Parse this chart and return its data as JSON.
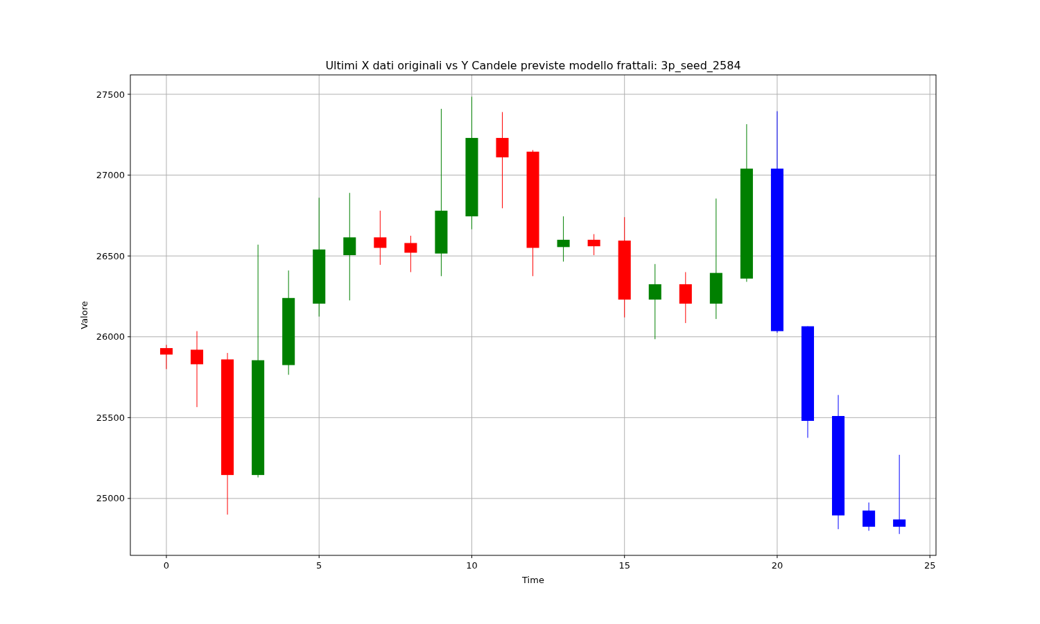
{
  "chart_data": {
    "type": "candlestick",
    "title": "Ultimi X dati originali vs Y Candele previste modello frattali: 3p_seed_2584",
    "xlabel": "Time",
    "ylabel": "Valore",
    "xlim": [
      -1.18,
      25.2
    ],
    "xticks": [
      0,
      5,
      10,
      15,
      20,
      25
    ],
    "ylim": [
      24648,
      27620
    ],
    "yticks": [
      25000,
      25500,
      26000,
      26500,
      27000,
      27500
    ],
    "grid": true,
    "series": [
      {
        "x": [
          0,
          1,
          2,
          3,
          4,
          5,
          6,
          7,
          8,
          9,
          10,
          11,
          12,
          13,
          14,
          15,
          16,
          17,
          18,
          19
        ],
        "ohlc": [
          [
            25930,
            25950,
            25800,
            25890
          ],
          [
            25920,
            26035,
            25565,
            25830
          ],
          [
            25860,
            25900,
            24900,
            25145
          ],
          [
            25145,
            26570,
            25130,
            25855
          ],
          [
            25825,
            26410,
            25765,
            26240
          ],
          [
            26205,
            26860,
            26125,
            26540
          ],
          [
            26505,
            26890,
            26225,
            26615
          ],
          [
            26615,
            26780,
            26445,
            26550
          ],
          [
            26580,
            26625,
            26400,
            26520
          ],
          [
            26515,
            27410,
            26375,
            26780
          ],
          [
            26745,
            27485,
            26665,
            27230
          ],
          [
            27230,
            27390,
            26795,
            27110
          ],
          [
            27145,
            27155,
            26375,
            26550
          ],
          [
            26555,
            26745,
            26465,
            26600
          ],
          [
            26600,
            26635,
            26505,
            26560
          ],
          [
            26595,
            26740,
            26120,
            26230
          ],
          [
            26230,
            26450,
            25985,
            26325
          ],
          [
            26325,
            26400,
            26085,
            26205
          ],
          [
            26205,
            26855,
            26110,
            26395
          ],
          [
            26360,
            27315,
            26340,
            27040
          ]
        ],
        "colors": [
          "#ff0000",
          "#ff0000",
          "#ff0000",
          "#008000",
          "#008000",
          "#008000",
          "#008000",
          "#ff0000",
          "#ff0000",
          "#008000",
          "#008000",
          "#ff0000",
          "#ff0000",
          "#008000",
          "#ff0000",
          "#ff0000",
          "#008000",
          "#ff0000",
          "#008000",
          "#008000"
        ]
      },
      {
        "x": [
          20,
          21,
          22,
          23,
          24
        ],
        "color": "#0000ff",
        "ohlc": [
          [
            27040,
            27395,
            26025,
            26035
          ],
          [
            26065,
            26065,
            25375,
            25480
          ],
          [
            25510,
            25640,
            24810,
            24895
          ],
          [
            24925,
            24975,
            24800,
            24825
          ],
          [
            24870,
            25270,
            24780,
            24825
          ]
        ]
      }
    ]
  }
}
